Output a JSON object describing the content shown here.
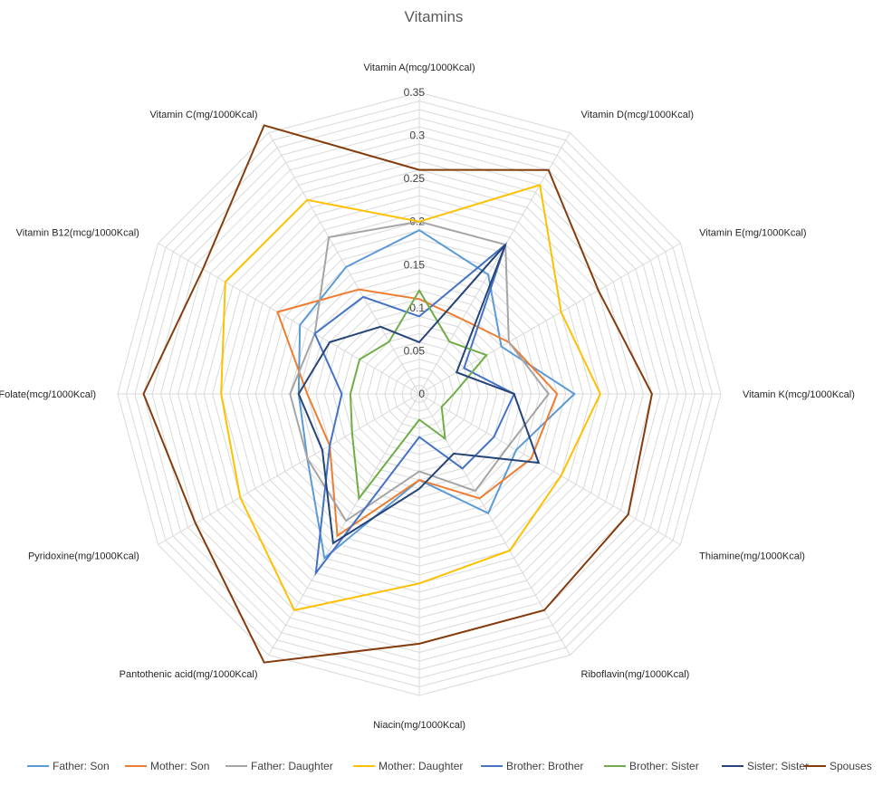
{
  "chart_data": {
    "type": "radar",
    "title": "Vitamins",
    "categories": [
      "Vitamin A(mcg/1000Kcal)",
      "Vitamin D(mcg/1000Kcal)",
      "Vitamin E(mg/1000Kcal)",
      "Vitamin K(mcg/1000Kcal)",
      "Thiamine(mg/1000Kcal)",
      "Riboflavin(mg/1000Kcal)",
      "Niacin(mg/1000Kcal)",
      "Pantothenic acid(mg/1000Kcal)",
      "Pyridoxine(mg/1000Kcal)",
      "Folate(mcg/1000Kcal)",
      "Vitamin B12(mcg/1000Kcal)",
      "Vitamin C(mg/1000Kcal)"
    ],
    "ticks": [
      "0",
      "0.05",
      "0.1",
      "0.15",
      "0.2",
      "0.25",
      "0.3",
      "0.35"
    ],
    "rmax": 0.35,
    "series": [
      {
        "name": "Father: Son",
        "color": "#5B9BD5",
        "values": [
          0.19,
          0.16,
          0.11,
          0.18,
          0.13,
          0.16,
          0.1,
          0.22,
          0.15,
          0.14,
          0.16,
          0.17
        ]
      },
      {
        "name": "Mother: Son",
        "color": "#ED7D31",
        "values": [
          0.11,
          0.1,
          0.12,
          0.16,
          0.15,
          0.14,
          0.1,
          0.19,
          0.12,
          0.13,
          0.19,
          0.14
        ]
      },
      {
        "name": "Father: Daughter",
        "color": "#A5A5A5",
        "values": [
          0.2,
          0.2,
          0.12,
          0.15,
          0.12,
          0.13,
          0.09,
          0.17,
          0.15,
          0.15,
          0.14,
          0.21
        ]
      },
      {
        "name": "Mother: Daughter",
        "color": "#FFC000",
        "values": [
          0.2,
          0.28,
          0.19,
          0.21,
          0.19,
          0.21,
          0.22,
          0.29,
          0.24,
          0.23,
          0.26,
          0.26
        ]
      },
      {
        "name": "Brother: Brother",
        "color": "#4472C4",
        "values": [
          0.09,
          0.2,
          0.06,
          0.11,
          0.1,
          0.1,
          0.05,
          0.24,
          0.12,
          0.09,
          0.14,
          0.13
        ]
      },
      {
        "name": "Brother: Sister",
        "color": "#70AD47",
        "values": [
          0.12,
          0.07,
          0.09,
          0.04,
          0.03,
          0.06,
          0.03,
          0.14,
          0.09,
          0.08,
          0.08,
          0.07
        ]
      },
      {
        "name": "Sister: Sister",
        "color": "#264478",
        "values": [
          0.06,
          0.2,
          0.05,
          0.11,
          0.16,
          0.08,
          0.11,
          0.2,
          0.13,
          0.14,
          0.12,
          0.09
        ]
      },
      {
        "name": "Spouses",
        "color": "#843C0C",
        "values": [
          0.26,
          0.3,
          0.24,
          0.27,
          0.28,
          0.29,
          0.29,
          0.36,
          0.3,
          0.32,
          0.29,
          0.36
        ]
      }
    ]
  }
}
